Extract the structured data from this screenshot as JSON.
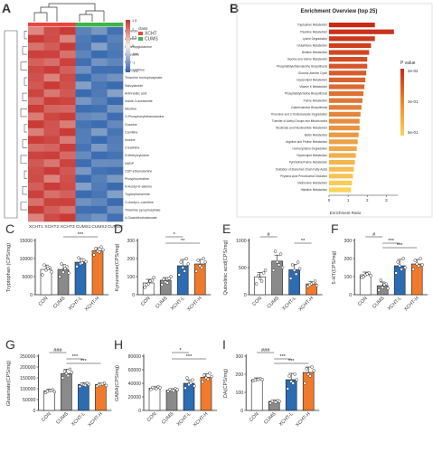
{
  "panels": {
    "A": {
      "letter": "A",
      "legend_title": "class",
      "legend_items": [
        {
          "label": "XCHT",
          "color": "#e8473f"
        },
        {
          "label": "CUMS",
          "color": "#3db54a"
        }
      ],
      "scale_ticks": [
        "1.5",
        "1",
        "0.5",
        "0",
        "-0.5",
        "-1",
        "-1.5"
      ],
      "samples": [
        "XCHT1",
        "XCHT2",
        "XCHT3",
        "CUMS1",
        "CUMS2",
        "CUMS3"
      ],
      "metabolites": [
        "Biliverdin",
        "Arginine",
        "N-Methylglutamine",
        "Isoleucine",
        "FAD",
        "Hypoxanthine",
        "Thiamine monophosphate",
        "Salicylamide",
        "Anthranilic acid",
        "Indole-3-acetamide",
        "Nicotine",
        "O-Phosphorylethanolamine",
        "Guanine",
        "Carnitine",
        "Inosine",
        "Creatinine",
        "5-Methylcytosine",
        "NADP",
        "CDP-ethanolamine",
        "Phosphocreatine",
        "N-Acetyl-D-alanine",
        "Tryptophanamide",
        "O-Acetyl-L-carnitine",
        "Thiamine pyrophosphate",
        "4-Guanidinobutanoate"
      ],
      "colors": {
        "high": "#c8312d",
        "mid": "#f4f0e8",
        "low": "#2f64ad"
      }
    },
    "B": {
      "letter": "B",
      "title": "Enrichment Overview (top 25)",
      "xlabel": "Enrichment Ratio",
      "pvalue_label": "P value",
      "pvalue_ticks": [
        "2e-02",
        "3e-01",
        "5e-01"
      ],
      "ticks": [
        "0",
        "1",
        "2",
        "3"
      ]
    },
    "C": {
      "letter": "C",
      "ylabel": "Tryptophan (CPS/mg)"
    },
    "D": {
      "letter": "D",
      "ylabel": "Kynurenine(CPS/mg)"
    },
    "E": {
      "letter": "E",
      "ylabel": "Quinolinic acid(CPS/mg)"
    },
    "F": {
      "letter": "F",
      "ylabel": "5-HT(CPS/mg)"
    },
    "G": {
      "letter": "G",
      "ylabel": "Glutamate(CPS/mg)"
    },
    "H": {
      "letter": "H",
      "ylabel": "GABA(CPS/mg)"
    },
    "I": {
      "letter": "I",
      "ylabel": "DA(CPS/mg)"
    }
  },
  "chart_data": [
    {
      "type": "bar",
      "panel": "B",
      "title": "Enrichment Overview (top 25)",
      "xlabel": "Enrichment Ratio",
      "orientation": "horizontal",
      "categories": [
        "Tryptophan Metabolism",
        "Thiamine Metabolism",
        "Lysine Degradation",
        "Glutathione Metabolism",
        "Betaine Metabolism",
        "Glycine and Serine Metabolism",
        "Phosphatidylethanolamine Biosynthesis",
        "Glucose-Alanine Cycle",
        "Glycerolipid Metabolism",
        "Vitamin K Metabolism",
        "Phosphatidylcholine Biosynthesis",
        "Purine Metabolism",
        "Catecholamine Biosynthesis",
        "Threonine and 2-Oxobutanoate Degradation",
        "Transfer of Acetyl Groups into Mitochondria",
        "Nicotinate and Nicotinamide Metabolism",
        "Biotin Metabolism",
        "Arginine and Proline Metabolism",
        "Homocysteine Degradation",
        "Glycerolipid Metabolism",
        "Pyrimidine/Purine Metabolism",
        "Oxidation of Branched Chain Fatty Acids",
        "Phytanic Acid Peroxisomal Oxidation",
        "Methionine Metabolism",
        "Histidine Metabolism"
      ],
      "values": [
        2.4,
        3.4,
        2.4,
        2.2,
        2.1,
        2.0,
        2.0,
        1.95,
        1.9,
        1.85,
        1.8,
        1.75,
        1.7,
        1.65,
        1.6,
        1.6,
        1.55,
        1.5,
        1.45,
        1.4,
        1.35,
        1.3,
        1.25,
        1.2,
        1.15
      ],
      "xlim": [
        0,
        3.6
      ]
    },
    {
      "type": "bar",
      "panel": "C",
      "ylabel": "Tryptophan (CPS/mg)",
      "categories": [
        "CON",
        "CUMS",
        "XCHT-L",
        "XCHT-H"
      ],
      "values": [
        7000,
        7000,
        9000,
        12200
      ],
      "errors": [
        1200,
        1300,
        1000,
        800
      ],
      "ylim": [
        0,
        15000
      ],
      "yticks": [
        0,
        5000,
        10000,
        15000
      ],
      "points": [
        [
          5500,
          6800,
          7500,
          8200,
          7300,
          6300
        ],
        [
          5000,
          6200,
          7800,
          8500,
          7200,
          6000
        ],
        [
          7800,
          8600,
          9500,
          10200,
          8800,
          9100
        ],
        [
          11000,
          12000,
          13200,
          12800,
          11800,
          12400
        ]
      ],
      "annotations": [
        {
          "from": 1,
          "to": 3,
          "label": "***"
        }
      ]
    },
    {
      "type": "bar",
      "panel": "D",
      "ylabel": "Kynurenine(CPS/mg)",
      "categories": [
        "CON",
        "CUMS",
        "XCHT-L",
        "XCHT-H"
      ],
      "values": [
        65,
        80,
        160,
        170
      ],
      "errors": [
        20,
        15,
        35,
        25
      ],
      "ylim": [
        0,
        300
      ],
      "yticks": [
        0,
        100,
        200,
        300
      ],
      "points": [
        [
          40,
          60,
          80,
          55,
          75,
          95
        ],
        [
          55,
          70,
          90,
          85,
          65,
          100
        ],
        [
          110,
          150,
          200,
          180,
          130,
          170
        ],
        [
          130,
          160,
          200,
          190,
          150,
          180
        ]
      ],
      "annotations": [
        {
          "from": 1,
          "to": 2,
          "label": "*"
        },
        {
          "from": 1,
          "to": 3,
          "label": "**"
        }
      ]
    },
    {
      "type": "bar",
      "panel": "E",
      "ylabel": "Quinolinic acid(CPS/mg)",
      "categories": [
        "CON",
        "CUMS",
        "XCHT-L",
        "XCHT-H"
      ],
      "values": [
        330,
        620,
        460,
        200
      ],
      "errors": [
        80,
        110,
        100,
        40
      ],
      "ylim": [
        0,
        1000
      ],
      "yticks": [
        0,
        500,
        1000
      ],
      "points": [
        [
          200,
          300,
          400,
          350,
          250,
          450
        ],
        [
          450,
          600,
          750,
          800,
          550,
          500
        ],
        [
          300,
          450,
          600,
          550,
          380,
          480
        ],
        [
          150,
          200,
          250,
          180,
          220,
          170
        ]
      ],
      "annotations": [
        {
          "from": 0,
          "to": 1,
          "label": "#"
        },
        {
          "from": 2,
          "to": 3,
          "label": "**"
        }
      ]
    },
    {
      "type": "bar",
      "panel": "F",
      "ylabel": "5-HT(CPS/mg)",
      "categories": [
        "CON",
        "CUMS",
        "XCHT-L",
        "XCHT-H"
      ],
      "values": [
        110,
        50,
        160,
        170
      ],
      "errors": [
        15,
        20,
        35,
        25
      ],
      "ylim": [
        0,
        300
      ],
      "yticks": [
        0,
        100,
        200,
        300
      ],
      "points": [
        [
          95,
          110,
          120,
          100,
          115,
          105
        ],
        [
          25,
          40,
          60,
          80,
          55,
          35
        ],
        [
          120,
          160,
          200,
          180,
          140,
          150
        ],
        [
          140,
          170,
          200,
          190,
          160,
          165
        ]
      ],
      "annotations": [
        {
          "from": 0,
          "to": 1,
          "label": "#"
        },
        {
          "from": 1,
          "to": 2,
          "label": "***"
        },
        {
          "from": 1,
          "to": 3,
          "label": "***"
        }
      ]
    },
    {
      "type": "bar",
      "panel": "G",
      "ylabel": "Glutamate(CPS/mg)",
      "categories": [
        "CON",
        "CUMS",
        "XCHT-L",
        "XCHT-H"
      ],
      "values": [
        90000,
        170000,
        120000,
        120000
      ],
      "errors": [
        8000,
        20000,
        8000,
        6000
      ],
      "ylim": [
        0,
        250000
      ],
      "yticks": [
        0,
        50000,
        100000,
        150000,
        200000,
        250000
      ],
      "points": [
        [
          82000,
          90000,
          95000,
          88000,
          92000,
          86000
        ],
        [
          150000,
          170000,
          190000,
          180000,
          160000,
          175000
        ],
        [
          110000,
          118000,
          125000,
          122000,
          115000,
          120000
        ],
        [
          112000,
          120000,
          126000,
          118000,
          122000,
          115000
        ]
      ],
      "annotations": [
        {
          "from": 0,
          "to": 1,
          "label": "###"
        },
        {
          "from": 1,
          "to": 2,
          "label": "***"
        },
        {
          "from": 1,
          "to": 3,
          "label": "***"
        }
      ]
    },
    {
      "type": "bar",
      "panel": "H",
      "ylabel": "GABA(CPS/mg)",
      "categories": [
        "CON",
        "CUMS",
        "XCHT-L",
        "XCHT-H"
      ],
      "values": [
        33000,
        30000,
        40000,
        49000
      ],
      "errors": [
        2000,
        2000,
        5000,
        5000
      ],
      "ylim": [
        0,
        80000
      ],
      "yticks": [
        0,
        20000,
        40000,
        60000,
        80000
      ],
      "points": [
        [
          31000,
          33000,
          35000,
          34000,
          32000,
          33500
        ],
        [
          28000,
          30000,
          32000,
          31000,
          29000,
          30500
        ],
        [
          33000,
          38000,
          45000,
          48000,
          40000,
          36000
        ],
        [
          42000,
          48000,
          55000,
          52000,
          46000,
          50000
        ]
      ],
      "annotations": [
        {
          "from": 1,
          "to": 2,
          "label": "*"
        },
        {
          "from": 1,
          "to": 3,
          "label": "***"
        }
      ]
    },
    {
      "type": "bar",
      "panel": "I",
      "ylabel": "DA(CPS/mg)",
      "categories": [
        "CON",
        "CUMS",
        "XCHT-L",
        "XCHT-H"
      ],
      "values": [
        170,
        50,
        170,
        210
      ],
      "errors": [
        10,
        8,
        35,
        30
      ],
      "ylim": [
        0,
        300
      ],
      "yticks": [
        0,
        100,
        200,
        300
      ],
      "points": [
        [
          165,
          170,
          175,
          168,
          172,
          171
        ],
        [
          40,
          48,
          55,
          52,
          45,
          50
        ],
        [
          120,
          160,
          200,
          190,
          150,
          170
        ],
        [
          150,
          200,
          240,
          230,
          190,
          220
        ]
      ],
      "annotations": [
        {
          "from": 0,
          "to": 1,
          "label": "###"
        },
        {
          "from": 1,
          "to": 2,
          "label": "***"
        },
        {
          "from": 1,
          "to": 3,
          "label": "***"
        }
      ]
    }
  ],
  "bar_colors": [
    "#ffffff",
    "#8a8a8a",
    "#2b6cb3",
    "#f07a2c"
  ],
  "heatmap_rows_pattern": "XCHT high / CUMS low"
}
